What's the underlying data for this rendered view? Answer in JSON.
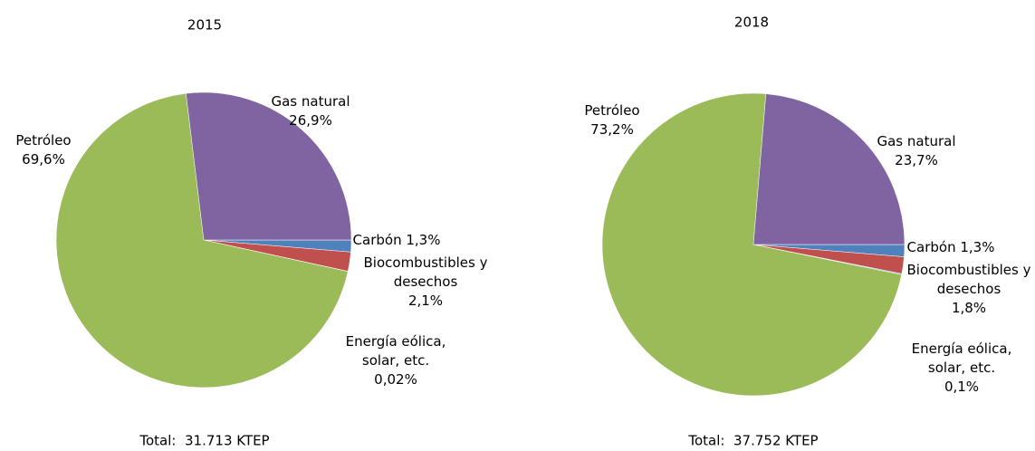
{
  "chart_data": [
    {
      "type": "pie",
      "title": "2015",
      "note": "Total:  31.713 KTEP",
      "categories": [
        "Carbón",
        "Biocombustibles y desechos",
        "Energía eólica, solar, etc.",
        "Petróleo",
        "Gas natural"
      ],
      "values": [
        1.3,
        2.1,
        0.02,
        69.6,
        26.9
      ],
      "value_labels": [
        "1,3%",
        "2,1%",
        "0,02%",
        "69,6%",
        "26,9%"
      ],
      "colors": [
        "#4f81bd",
        "#c0504d",
        "#4bacc6",
        "#9bbb59",
        "#8064a2"
      ]
    },
    {
      "type": "pie",
      "title": "2018",
      "note": "Total:  37.752 KTEP",
      "categories": [
        "Carbón",
        "Biocombustibles y desechos",
        "Energía eólica, solar, etc.",
        "Petróleo",
        "Gas natural"
      ],
      "values": [
        1.3,
        1.8,
        0.1,
        73.2,
        23.7
      ],
      "value_labels": [
        "1,3%",
        "1,8%",
        "0,1%",
        "73,2%",
        "23,7%"
      ],
      "colors": [
        "#4f81bd",
        "#c0504d",
        "#4bacc6",
        "#9bbb59",
        "#8064a2"
      ]
    }
  ]
}
